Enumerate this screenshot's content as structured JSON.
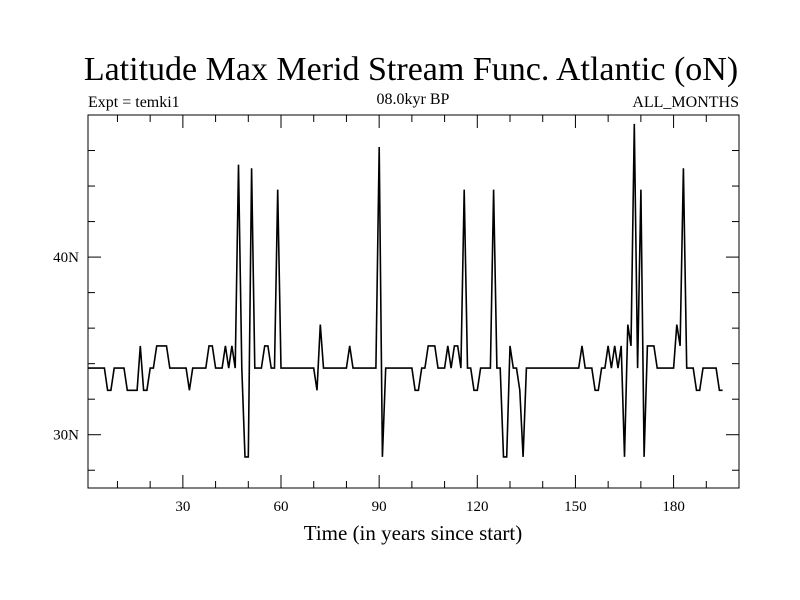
{
  "chart_data": {
    "type": "line",
    "title": "Latitude Max Merid Stream Func. Atlantic (oN)",
    "subtitle_left": "Expt = temki1",
    "subtitle_center": "08.0kyr BP",
    "subtitle_right": "ALL_MONTHS",
    "xlabel": "Time (in years since start)",
    "ylabel": "",
    "xlim": [
      1,
      200
    ],
    "ylim": [
      27,
      48
    ],
    "x_ticks": [
      30,
      60,
      90,
      120,
      150,
      180
    ],
    "x_tick_labels": [
      "30",
      "60",
      "90",
      "120",
      "150",
      "180"
    ],
    "y_ticks": [
      30,
      40
    ],
    "y_tick_labels": [
      "30N",
      "40N"
    ],
    "grid": false,
    "series": [
      {
        "color": "#000000",
        "points": [
          [
            1,
            33.75
          ],
          [
            6,
            33.75
          ],
          [
            7,
            32.5
          ],
          [
            8,
            32.5
          ],
          [
            9,
            33.75
          ],
          [
            12,
            33.75
          ],
          [
            13,
            32.5
          ],
          [
            16,
            32.5
          ],
          [
            17,
            35
          ],
          [
            18,
            32.5
          ],
          [
            19,
            32.5
          ],
          [
            20,
            33.75
          ],
          [
            21,
            33.75
          ],
          [
            22,
            35
          ],
          [
            25,
            35
          ],
          [
            26,
            33.75
          ],
          [
            31,
            33.75
          ],
          [
            32,
            32.5
          ],
          [
            33,
            33.75
          ],
          [
            37,
            33.75
          ],
          [
            38,
            35
          ],
          [
            39,
            35
          ],
          [
            40,
            33.75
          ],
          [
            42,
            33.75
          ],
          [
            43,
            35
          ],
          [
            44,
            33.75
          ],
          [
            45,
            35
          ],
          [
            46,
            33.75
          ],
          [
            47,
            45.2
          ],
          [
            48,
            33.75
          ],
          [
            49,
            28.75
          ],
          [
            50,
            28.75
          ],
          [
            51,
            45
          ],
          [
            52,
            33.75
          ],
          [
            54,
            33.75
          ],
          [
            55,
            35
          ],
          [
            56,
            35
          ],
          [
            57,
            33.75
          ],
          [
            58,
            33.75
          ],
          [
            59,
            43.8
          ],
          [
            60,
            33.75
          ],
          [
            70,
            33.75
          ],
          [
            71,
            32.5
          ],
          [
            72,
            36.2
          ],
          [
            73,
            33.75
          ],
          [
            80,
            33.75
          ],
          [
            81,
            35
          ],
          [
            82,
            33.75
          ],
          [
            89,
            33.75
          ],
          [
            90,
            46.2
          ],
          [
            91,
            28.75
          ],
          [
            92,
            33.75
          ],
          [
            100,
            33.75
          ],
          [
            101,
            32.5
          ],
          [
            102,
            32.5
          ],
          [
            103,
            33.75
          ],
          [
            104,
            33.75
          ],
          [
            105,
            35
          ],
          [
            107,
            35
          ],
          [
            108,
            33.75
          ],
          [
            110,
            33.75
          ],
          [
            111,
            35
          ],
          [
            112,
            33.75
          ],
          [
            113,
            35
          ],
          [
            114,
            35
          ],
          [
            115,
            33.75
          ],
          [
            116,
            43.8
          ],
          [
            117,
            33.75
          ],
          [
            118,
            33.75
          ],
          [
            119,
            32.5
          ],
          [
            120,
            32.5
          ],
          [
            121,
            33.75
          ],
          [
            124,
            33.75
          ],
          [
            125,
            43.8
          ],
          [
            126,
            33.75
          ],
          [
            127,
            33.75
          ],
          [
            128,
            28.75
          ],
          [
            129,
            28.75
          ],
          [
            130,
            35
          ],
          [
            131,
            33.75
          ],
          [
            132,
            33.75
          ],
          [
            133,
            32.5
          ],
          [
            134,
            28.75
          ],
          [
            135,
            33.75
          ],
          [
            151,
            33.75
          ],
          [
            152,
            35
          ],
          [
            153,
            33.75
          ],
          [
            155,
            33.75
          ],
          [
            156,
            32.5
          ],
          [
            157,
            32.5
          ],
          [
            158,
            33.75
          ],
          [
            159,
            33.75
          ],
          [
            160,
            35
          ],
          [
            161,
            33.75
          ],
          [
            162,
            35
          ],
          [
            163,
            33.75
          ],
          [
            164,
            35
          ],
          [
            165,
            28.75
          ],
          [
            166,
            36.2
          ],
          [
            167,
            35
          ],
          [
            168,
            47.5
          ],
          [
            169,
            33.75
          ],
          [
            170,
            43.8
          ],
          [
            171,
            28.75
          ],
          [
            172,
            35
          ],
          [
            174,
            35
          ],
          [
            175,
            33.75
          ],
          [
            180,
            33.75
          ],
          [
            181,
            36.2
          ],
          [
            182,
            35
          ],
          [
            183,
            45
          ],
          [
            184,
            33.75
          ],
          [
            186,
            33.75
          ],
          [
            187,
            32.5
          ],
          [
            188,
            32.5
          ],
          [
            189,
            33.75
          ],
          [
            193,
            33.75
          ],
          [
            194,
            32.5
          ],
          [
            195,
            32.5
          ]
        ]
      }
    ]
  }
}
